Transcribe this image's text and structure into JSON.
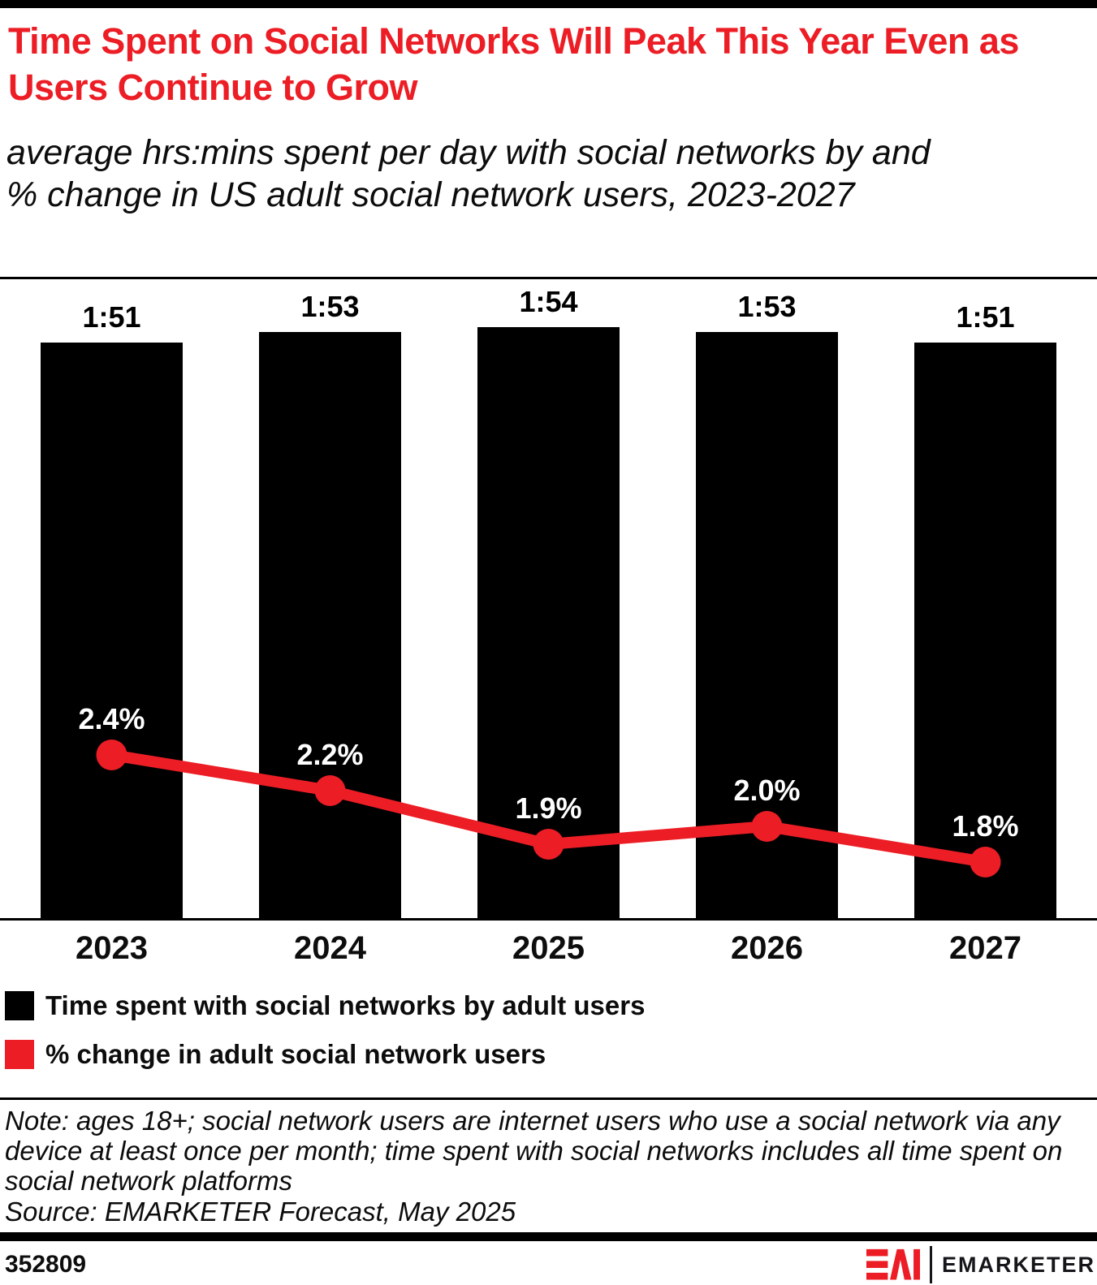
{
  "header": {
    "title": "Time Spent on Social Networks Will Peak This Year Even as Users Continue to Grow",
    "subtitle": "average hrs:mins spent per day with social networks by and % change in US adult social network users, 2023-2027"
  },
  "chart_data": {
    "type": "combo-bar-line",
    "categories": [
      "2023",
      "2024",
      "2025",
      "2026",
      "2027"
    ],
    "series": [
      {
        "name": "Time spent with social networks by adult users",
        "type": "bar",
        "unit": "hrs:mins per day",
        "labels": [
          "1:51",
          "1:53",
          "1:54",
          "1:53",
          "1:51"
        ],
        "values_minutes": [
          111,
          113,
          114,
          113,
          111
        ],
        "color": "#000000"
      },
      {
        "name": "% change in adult social network users",
        "type": "line",
        "unit": "%",
        "labels": [
          "2.4%",
          "2.2%",
          "1.9%",
          "2.0%",
          "1.8%"
        ],
        "values": [
          2.4,
          2.2,
          1.9,
          2.0,
          1.8
        ],
        "color": "#EC1D25"
      }
    ],
    "legend_position": "bottom-left",
    "grid": false,
    "value_labels_shown": true
  },
  "legend": {
    "items": [
      {
        "label": "Time spent with social networks by adult users",
        "color": "#000000"
      },
      {
        "label": "% change in adult social network users",
        "color": "#EC1D25"
      }
    ]
  },
  "footnote": {
    "note": "Note: ages 18+; social network users are internet users who use a social network via any device at least once per month; time spent with social networks includes all time spent on social network platforms",
    "source": "Source: EMARKETER Forecast, May 2025"
  },
  "footer": {
    "chart_id": "352809",
    "brand": "EMARKETER"
  },
  "colors": {
    "accent_red": "#EC1D25",
    "bar_black": "#000000",
    "text": "#0d0d0d"
  }
}
